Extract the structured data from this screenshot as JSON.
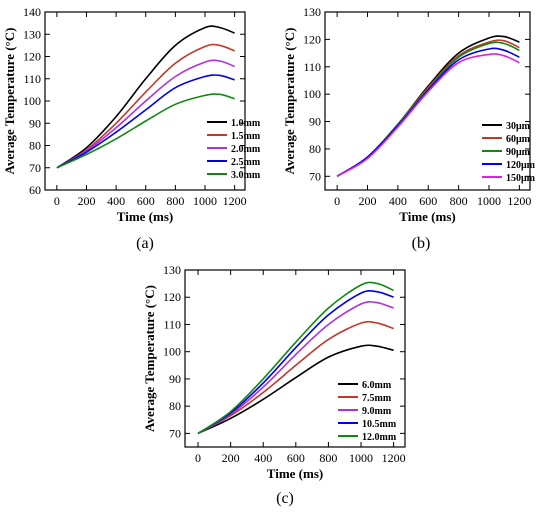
{
  "chart_data": [
    {
      "type": "line",
      "panel_label": "(a)",
      "xlabel": "Time (ms)",
      "ylabel": "Average Temperature (°C)",
      "xlim": [
        -80,
        1270
      ],
      "ylim": [
        60,
        140
      ],
      "xticks": [
        "0",
        "200",
        "400",
        "600",
        "800",
        "1000",
        "1200"
      ],
      "yticks": [
        "60",
        "70",
        "80",
        "90",
        "100",
        "110",
        "120",
        "130",
        "140"
      ],
      "legend_position": "bottom-right",
      "series": [
        {
          "name": "1.0mm",
          "color": "#000000",
          "x": [
            0,
            200,
            400,
            600,
            800,
            1000,
            1100,
            1200
          ],
          "y": [
            70,
            79,
            93,
            110,
            125,
            133,
            133,
            130.5
          ]
        },
        {
          "name": "1.5mm",
          "color": "#c0392b",
          "x": [
            0,
            200,
            400,
            600,
            800,
            1000,
            1100,
            1200
          ],
          "y": [
            70,
            78,
            90,
            104,
            117,
            124.5,
            125,
            122.5
          ]
        },
        {
          "name": "2.0mm",
          "color": "#b030e0",
          "x": [
            0,
            200,
            400,
            600,
            800,
            1000,
            1100,
            1200
          ],
          "y": [
            70,
            77.5,
            88,
            100,
            111,
            117.5,
            118,
            115.5
          ]
        },
        {
          "name": "2.5mm",
          "color": "#0000ee",
          "x": [
            0,
            200,
            400,
            600,
            800,
            1000,
            1100,
            1200
          ],
          "y": [
            70,
            77,
            86,
            96,
            106,
            111,
            111.5,
            109.5
          ]
        },
        {
          "name": "3.0mm",
          "color": "#118811",
          "x": [
            0,
            200,
            400,
            600,
            800,
            1000,
            1100,
            1200
          ],
          "y": [
            70,
            76,
            83,
            91,
            98.5,
            102.5,
            103,
            101
          ]
        }
      ]
    },
    {
      "type": "line",
      "panel_label": "(b)",
      "xlabel": "Time (ms)",
      "ylabel": "Average Temperature (°C)",
      "xlim": [
        -80,
        1270
      ],
      "ylim": [
        65,
        130
      ],
      "xticks": [
        "0",
        "200",
        "400",
        "600",
        "800",
        "1000",
        "1200"
      ],
      "yticks": [
        "70",
        "80",
        "90",
        "100",
        "110",
        "120",
        "130"
      ],
      "legend_position": "bottom-right",
      "series": [
        {
          "name": "30μm",
          "color": "#000000",
          "x": [
            0,
            200,
            400,
            600,
            800,
            1000,
            1100,
            1200
          ],
          "y": [
            70,
            77,
            89,
            103,
            115,
            120.5,
            121,
            119
          ]
        },
        {
          "name": "60μm",
          "color": "#c0392b",
          "x": [
            0,
            200,
            400,
            600,
            800,
            1000,
            1100,
            1200
          ],
          "y": [
            70,
            77,
            89,
            102.5,
            114,
            119,
            119.5,
            117
          ]
        },
        {
          "name": "90μm",
          "color": "#118811",
          "x": [
            0,
            200,
            400,
            600,
            800,
            1000,
            1100,
            1200
          ],
          "y": [
            70,
            77,
            89,
            102,
            113.5,
            118.5,
            118.5,
            116
          ]
        },
        {
          "name": "120μm",
          "color": "#0000ee",
          "x": [
            0,
            200,
            400,
            600,
            800,
            1000,
            1100,
            1200
          ],
          "y": [
            70,
            77,
            88.5,
            101.5,
            112.5,
            116.5,
            116,
            113.5
          ]
        },
        {
          "name": "150μm",
          "color": "#dd22dd",
          "x": [
            0,
            200,
            400,
            600,
            800,
            1000,
            1100,
            1200
          ],
          "y": [
            70,
            76.5,
            88,
            101,
            111.5,
            114.5,
            114,
            111.5
          ]
        }
      ]
    },
    {
      "type": "line",
      "panel_label": "(c)",
      "xlabel": "Time (ms)",
      "ylabel": "Average Temperature (°C)",
      "xlim": [
        -80,
        1270
      ],
      "ylim": [
        65,
        130
      ],
      "xticks": [
        "0",
        "200",
        "400",
        "600",
        "800",
        "1000",
        "1200"
      ],
      "yticks": [
        "70",
        "80",
        "90",
        "100",
        "110",
        "120",
        "130"
      ],
      "legend_position": "bottom-right",
      "series": [
        {
          "name": "6.0mm",
          "color": "#000000",
          "x": [
            0,
            200,
            400,
            600,
            800,
            1000,
            1100,
            1200
          ],
          "y": [
            70,
            75.5,
            82.5,
            90.5,
            98,
            102,
            102,
            100.5
          ]
        },
        {
          "name": "7.5mm",
          "color": "#c0392b",
          "x": [
            0,
            200,
            400,
            600,
            800,
            1000,
            1100,
            1200
          ],
          "y": [
            70,
            76.5,
            85,
            95,
            104.5,
            110.5,
            110.5,
            108.5
          ]
        },
        {
          "name": "9.0mm",
          "color": "#b030e0",
          "x": [
            0,
            200,
            400,
            600,
            800,
            1000,
            1100,
            1200
          ],
          "y": [
            70,
            77,
            87,
            99,
            110,
            117.5,
            118,
            116
          ]
        },
        {
          "name": "10.5mm",
          "color": "#0000ee",
          "x": [
            0,
            200,
            400,
            600,
            800,
            1000,
            1100,
            1200
          ],
          "y": [
            70,
            77.5,
            88.5,
            101.5,
            113.5,
            121.5,
            122,
            120
          ]
        },
        {
          "name": "12.0mm",
          "color": "#118811",
          "x": [
            0,
            200,
            400,
            600,
            800,
            1000,
            1100,
            1200
          ],
          "y": [
            70,
            78,
            90,
            103.5,
            116,
            124.5,
            125,
            122.5
          ]
        }
      ]
    }
  ]
}
